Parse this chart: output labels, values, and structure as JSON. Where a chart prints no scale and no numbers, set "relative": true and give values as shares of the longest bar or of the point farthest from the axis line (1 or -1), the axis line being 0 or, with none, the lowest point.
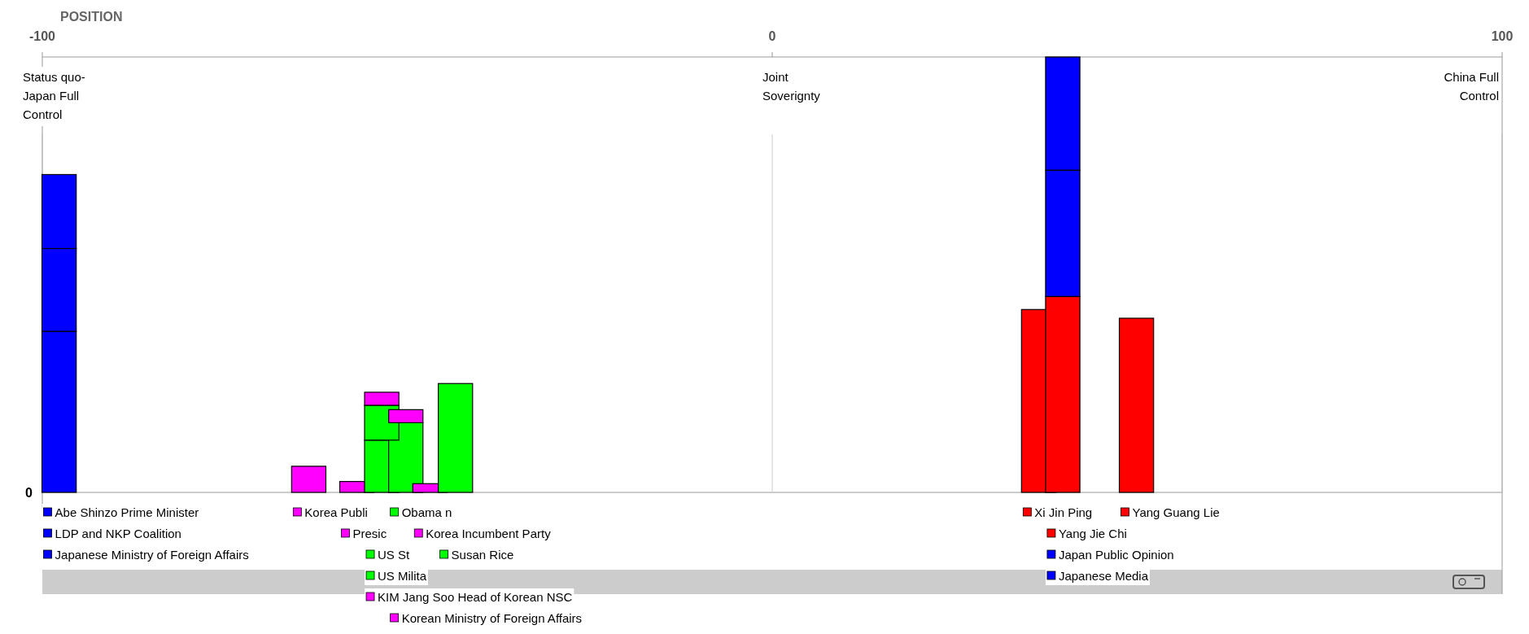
{
  "chart_data": {
    "type": "bar",
    "stacked": true,
    "relative": true,
    "xlabel": "POSITION",
    "xlim": [
      -100,
      100
    ],
    "xticks": [
      -100,
      0,
      100
    ],
    "x": [
      -97.7,
      -63.5,
      -56.9,
      -53.5,
      -50.2,
      -46.9,
      -43.4,
      36.5,
      39.8,
      49.9
    ],
    "ref_lines": [
      {
        "axis": "x",
        "value": -100,
        "label": "Status quo- Japan Full Control",
        "color": "#bbbbbb"
      },
      {
        "axis": "x",
        "value": 0,
        "label": "Joint Soverignty",
        "color": "#cccccc"
      },
      {
        "axis": "x",
        "value": 100,
        "label": "China Full Control",
        "color": "#bbbbbb"
      }
    ],
    "annotations": [
      "0"
    ],
    "legend": "bottom",
    "series": [
      {
        "name": "Abe Shinzo Prime Minister",
        "color": "#0000ff",
        "values": [
          0.37,
          null,
          null,
          null,
          null,
          null,
          null,
          null,
          null,
          null
        ]
      },
      {
        "name": "Korea Publi",
        "color": "#ff00ff",
        "values": [
          null,
          0.06,
          null,
          null,
          null,
          null,
          null,
          null,
          null,
          null
        ]
      },
      {
        "name": "Presic",
        "color": "#ff00ff",
        "values": [
          null,
          null,
          0.025,
          null,
          null,
          null,
          null,
          null,
          null,
          null
        ]
      },
      {
        "name": "US St",
        "color": "#00ff00",
        "values": [
          null,
          null,
          null,
          0.12,
          null,
          null,
          null,
          null,
          null,
          null
        ]
      },
      {
        "name": "Obama n",
        "color": "#00ff00",
        "values": [
          null,
          null,
          null,
          null,
          0.16,
          null,
          null,
          null,
          null,
          null
        ]
      },
      {
        "name": "Korea Incumbent Party",
        "color": "#ff00ff",
        "values": [
          null,
          null,
          null,
          null,
          null,
          0.02,
          null,
          null,
          null,
          null
        ]
      },
      {
        "name": "Susan Rice",
        "color": "#00ff00",
        "values": [
          null,
          null,
          null,
          null,
          null,
          null,
          0.25,
          null,
          null,
          null
        ]
      },
      {
        "name": "Xi Jin Ping",
        "color": "#ff0000",
        "values": [
          null,
          null,
          null,
          null,
          null,
          null,
          null,
          0.42,
          null,
          null
        ]
      },
      {
        "name": "Yang Jie Chi",
        "color": "#ff0000",
        "values": [
          null,
          null,
          null,
          null,
          null,
          null,
          null,
          null,
          0.45,
          null
        ]
      },
      {
        "name": "Yang Guang Lie",
        "color": "#ff0000",
        "values": [
          null,
          null,
          null,
          null,
          null,
          null,
          null,
          null,
          null,
          0.4
        ]
      },
      {
        "name": "LDP and NKP Coalition",
        "color": "#0000ff",
        "values": [
          0.19,
          null,
          null,
          null,
          null,
          null,
          null,
          null,
          null,
          null
        ]
      },
      {
        "name": "US Milita",
        "color": "#00ff00",
        "values": [
          null,
          null,
          null,
          0.08,
          null,
          null,
          null,
          null,
          null,
          null
        ]
      },
      {
        "name": "Korean Ministry of Foreign Affairs",
        "color": "#ff00ff",
        "values": [
          null,
          null,
          null,
          null,
          0.03,
          null,
          null,
          null,
          null,
          null
        ]
      },
      {
        "name": "Japan Public Opinion",
        "color": "#0000ff",
        "values": [
          null,
          null,
          null,
          null,
          null,
          null,
          null,
          null,
          0.29,
          null
        ]
      },
      {
        "name": "Japanese Ministry of Foreign Affairs",
        "color": "#0000ff",
        "values": [
          0.17,
          null,
          null,
          null,
          null,
          null,
          null,
          null,
          null,
          null
        ]
      },
      {
        "name": "KIM Jang Soo Head of Korean NSC",
        "color": "#ff00ff",
        "values": [
          null,
          null,
          null,
          0.03,
          null,
          null,
          null,
          null,
          null,
          null
        ]
      },
      {
        "name": "Japanese Media",
        "color": "#0000ff",
        "values": [
          null,
          null,
          null,
          null,
          null,
          null,
          null,
          null,
          0.26,
          null
        ]
      }
    ]
  }
}
